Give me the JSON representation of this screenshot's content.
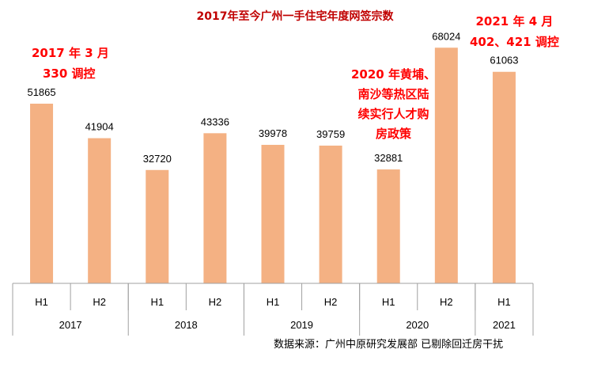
{
  "chart_data": {
    "type": "bar",
    "title": "2017年至今广州一手住宅年度网签宗数",
    "categories": [
      "H1",
      "H2",
      "H1",
      "H2",
      "H1",
      "H2",
      "H1",
      "H2",
      "H1"
    ],
    "groups": [
      {
        "label": "2017",
        "span": 2
      },
      {
        "label": "2018",
        "span": 2
      },
      {
        "label": "2019",
        "span": 2
      },
      {
        "label": "2020",
        "span": 2
      },
      {
        "label": "2021",
        "span": 1
      }
    ],
    "values": [
      51865,
      41904,
      32720,
      43336,
      39978,
      39759,
      32881,
      68024,
      61063
    ],
    "ylim": [
      0,
      80000
    ],
    "grid": false,
    "legend": "none",
    "bar_color": "#f4b183",
    "axis_color": "#a0a0a0",
    "annotations": [
      {
        "lines": [
          "2017 年 3 月",
          "330 调控"
        ]
      },
      {
        "lines": [
          "2020 年黄埔、",
          "南沙等热区陆",
          "续实行人才购",
          "房政策"
        ]
      },
      {
        "lines": [
          "2021 年 4 月",
          "402、421 调控"
        ]
      }
    ],
    "annotation_color": "#ff0000",
    "title_color": "#c00000"
  },
  "source": "数据来源：广州中原研究发展部  已剔除回迁房干扰"
}
